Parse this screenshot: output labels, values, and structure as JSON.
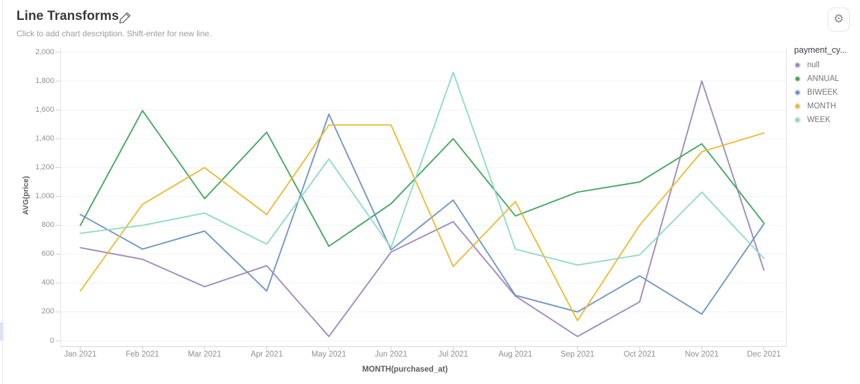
{
  "header": {
    "title": "Line Transforms",
    "description_placeholder": "Click to add chart description. Shift-enter for new line."
  },
  "icons": {
    "edit_title": "pencil-icon",
    "chart_settings": "gear-icon"
  },
  "chart_data": {
    "type": "line",
    "title": "Line Transforms",
    "xlabel": "MONTH(purchased_at)",
    "ylabel": "AVG(price)",
    "categories": [
      "Jan 2021",
      "Feb 2021",
      "Mar 2021",
      "Apr 2021",
      "May 2021",
      "Jun 2021",
      "Jul 2021",
      "Aug 2021",
      "Sep 2021",
      "Oct 2021",
      "Nov 2021",
      "Dec 2021"
    ],
    "ylim": [
      0,
      2000
    ],
    "ytick_interval": 200,
    "ytick_labels": [
      "0",
      "200",
      "400",
      "600",
      "800",
      "1,000",
      "1,200",
      "1,400",
      "1,600",
      "1,800",
      "2,000"
    ],
    "grid": true,
    "legend_title": "payment_cy...",
    "legend_position": "right",
    "series": [
      {
        "name": "null",
        "color": "#9c87bd",
        "values": [
          645,
          565,
          375,
          520,
          30,
          615,
          825,
          310,
          30,
          270,
          1800,
          490
        ]
      },
      {
        "name": "ANNUAL",
        "color": "#3fa45c",
        "values": [
          800,
          1595,
          985,
          1445,
          655,
          950,
          1400,
          865,
          1030,
          1100,
          1365,
          815
        ]
      },
      {
        "name": "BIWEEK",
        "color": "#6d92c5",
        "values": [
          875,
          635,
          760,
          345,
          1570,
          630,
          975,
          315,
          200,
          450,
          185,
          810
        ]
      },
      {
        "name": "MONTH",
        "color": "#e9ba2e",
        "values": [
          345,
          945,
          1200,
          875,
          1495,
          1495,
          515,
          965,
          140,
          800,
          1310,
          1440
        ]
      },
      {
        "name": "WEEK",
        "color": "#8ed9c4",
        "values": [
          745,
          800,
          885,
          670,
          1260,
          645,
          1860,
          635,
          525,
          595,
          1030,
          570
        ]
      }
    ]
  }
}
